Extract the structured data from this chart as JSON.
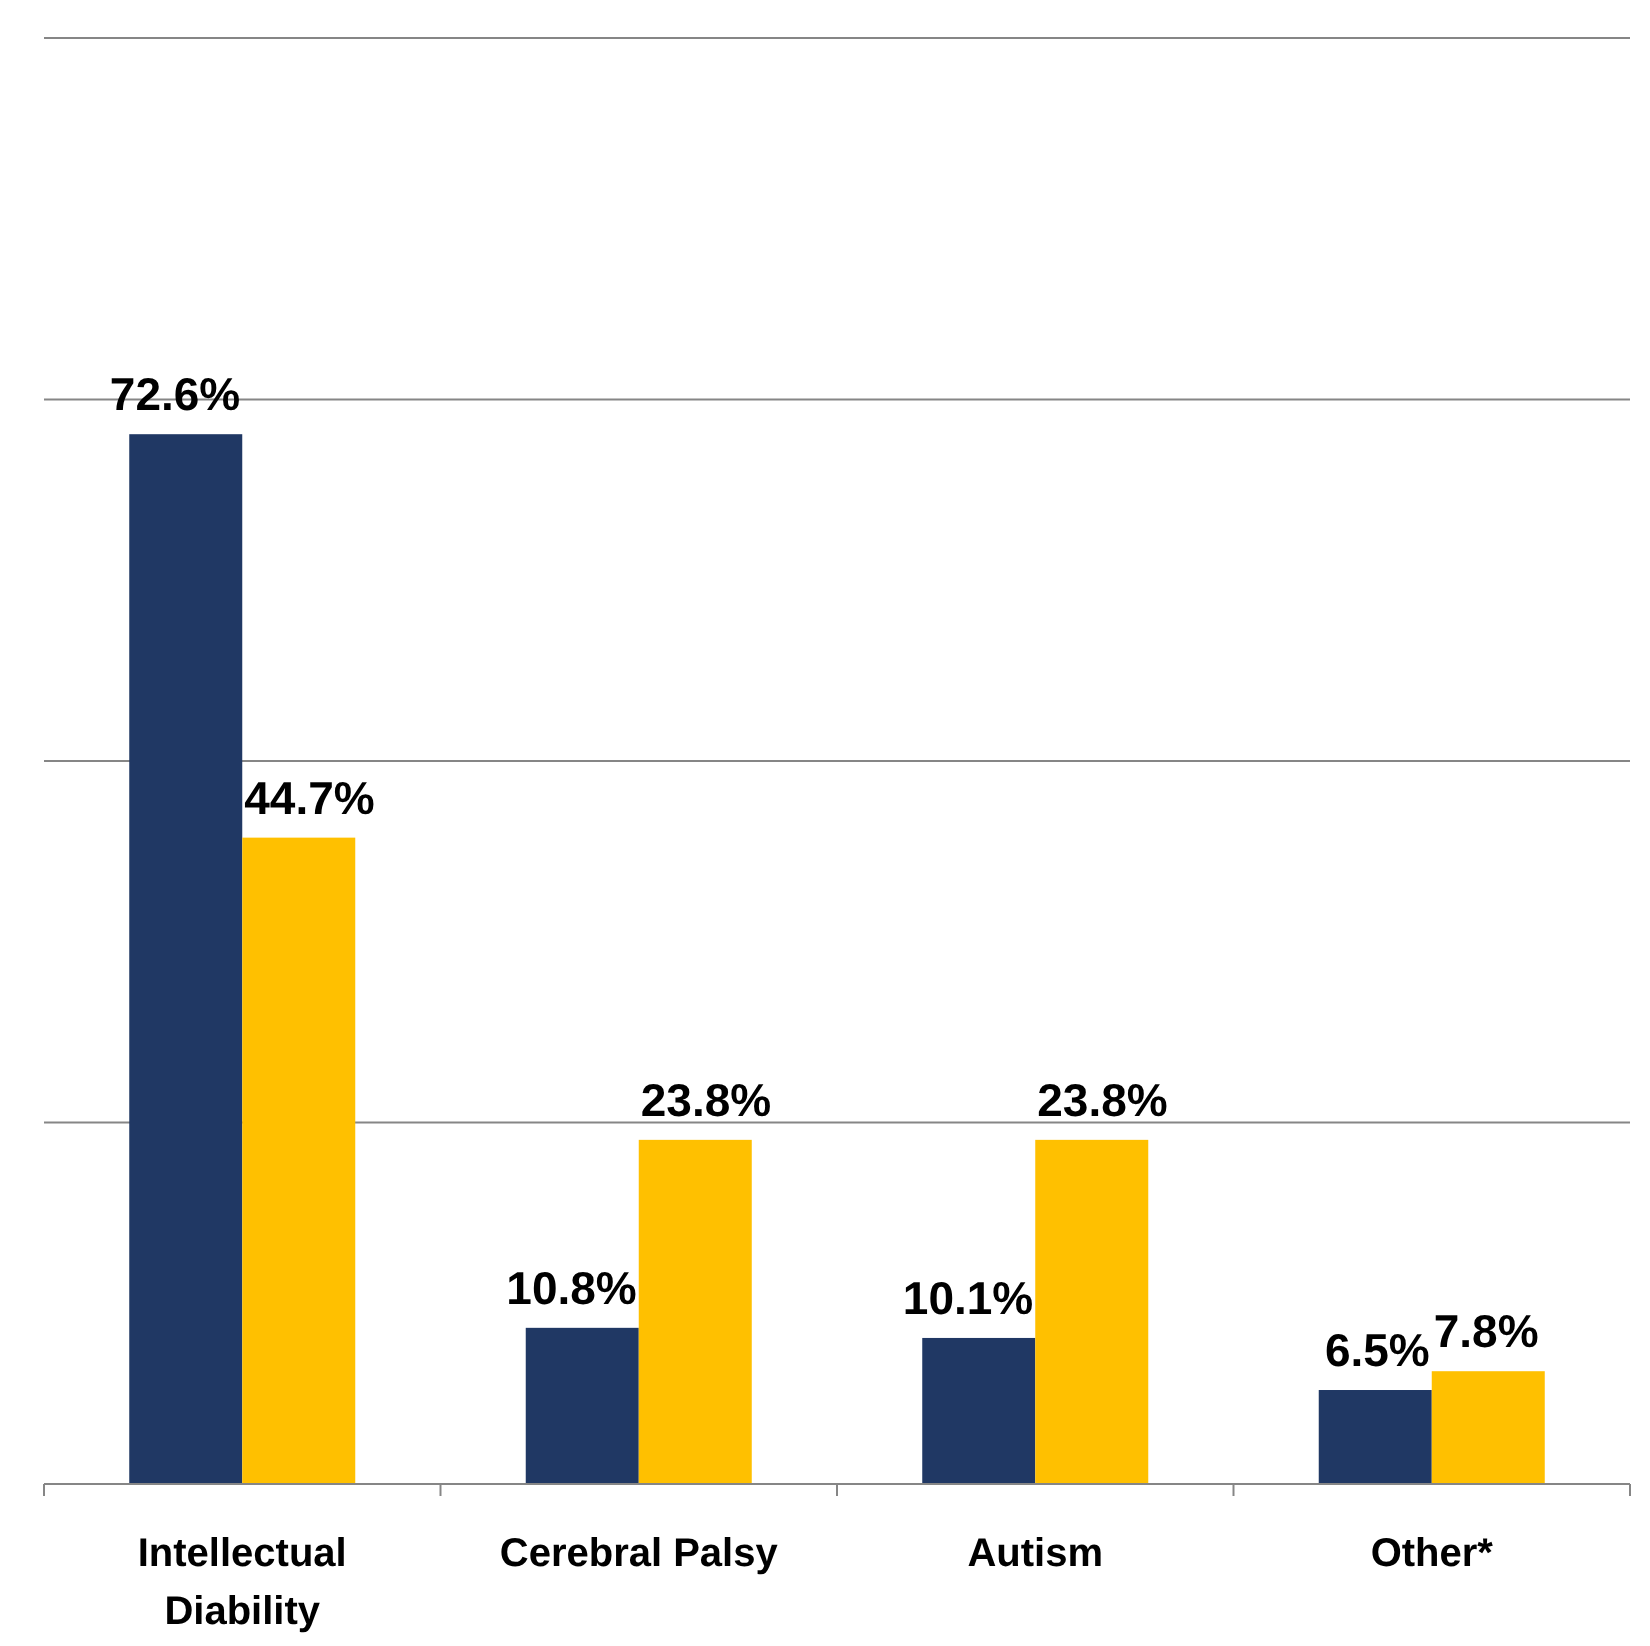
{
  "chart_data": {
    "type": "bar",
    "categories": [
      "Intellectual Diability",
      "Cerebral Palsy",
      "Autism",
      "Other*"
    ],
    "series": [
      {
        "color": "#203864",
        "values": [
          72.6,
          10.8,
          10.1,
          6.5
        ],
        "value_labels": [
          "72.6%",
          "10.8%",
          "10.1%",
          "6.5%"
        ]
      },
      {
        "color": "#ffc000",
        "values": [
          44.7,
          23.8,
          23.8,
          7.8
        ],
        "value_labels": [
          "44.7%",
          "23.8%",
          "23.8%",
          "7.8%"
        ]
      }
    ],
    "ylim": [
      0,
      100
    ],
    "yticks": [
      {
        "value": 0,
        "label": null
      },
      {
        "value": 25,
        "label": null
      },
      {
        "value": 50,
        "label": null
      },
      {
        "value": 75,
        "label": null
      },
      {
        "value": 100,
        "label": null
      }
    ],
    "grid": "y",
    "tick_labels": "x"
  }
}
